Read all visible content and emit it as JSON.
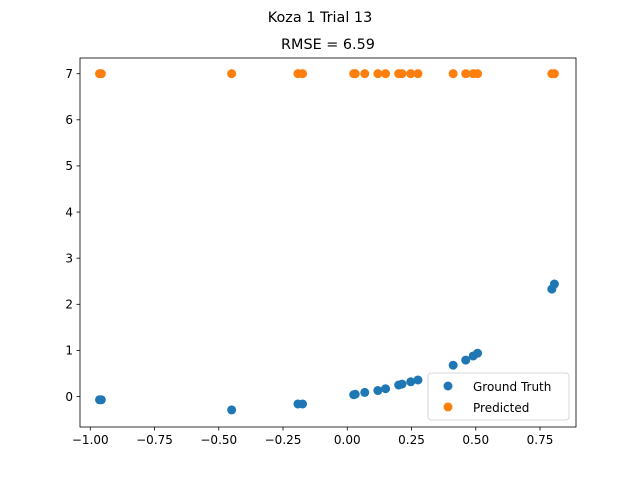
{
  "chart_data": {
    "type": "scatter",
    "suptitle": "Koza 1 Trial 13",
    "title": "RMSE = 6.59",
    "xlabel": "",
    "ylabel": "",
    "xlim": [
      -1.04,
      0.89
    ],
    "ylim": [
      -0.66,
      7.34
    ],
    "x_ticks": [
      -1.0,
      -0.75,
      -0.5,
      -0.25,
      0.0,
      0.25,
      0.5,
      0.75
    ],
    "x_tick_labels": [
      "−1.00",
      "−0.75",
      "−0.50",
      "−0.25",
      "0.00",
      "0.25",
      "0.50",
      "0.75"
    ],
    "y_ticks": [
      0,
      1,
      2,
      3,
      4,
      5,
      6,
      7
    ],
    "y_tick_labels": [
      "0",
      "1",
      "2",
      "3",
      "4",
      "5",
      "6",
      "7"
    ],
    "grid": false,
    "legend_position": "lower-right",
    "series": [
      {
        "name": "Ground Truth",
        "color": "#1f77b4",
        "points": [
          [
            -0.964,
            -0.07
          ],
          [
            -0.957,
            -0.07
          ],
          [
            -0.45,
            -0.29
          ],
          [
            -0.192,
            -0.16
          ],
          [
            -0.174,
            -0.16
          ],
          [
            0.025,
            0.04
          ],
          [
            0.031,
            0.05
          ],
          [
            0.068,
            0.09
          ],
          [
            0.119,
            0.13
          ],
          [
            0.149,
            0.17
          ],
          [
            0.2,
            0.25
          ],
          [
            0.213,
            0.27
          ],
          [
            0.247,
            0.32
          ],
          [
            0.275,
            0.36
          ],
          [
            0.412,
            0.68
          ],
          [
            0.461,
            0.79
          ],
          [
            0.49,
            0.88
          ],
          [
            0.507,
            0.94
          ],
          [
            0.796,
            2.33
          ],
          [
            0.806,
            2.44
          ]
        ]
      },
      {
        "name": "Predicted",
        "color": "#ff7f0e",
        "points": [
          [
            -0.964,
            7.0
          ],
          [
            -0.957,
            7.0
          ],
          [
            -0.45,
            7.0
          ],
          [
            -0.192,
            7.0
          ],
          [
            -0.174,
            7.0
          ],
          [
            0.025,
            7.0
          ],
          [
            0.031,
            7.0
          ],
          [
            0.068,
            7.0
          ],
          [
            0.119,
            7.0
          ],
          [
            0.149,
            7.0
          ],
          [
            0.2,
            7.0
          ],
          [
            0.213,
            7.0
          ],
          [
            0.247,
            7.0
          ],
          [
            0.275,
            7.0
          ],
          [
            0.412,
            7.0
          ],
          [
            0.461,
            7.0
          ],
          [
            0.49,
            7.0
          ],
          [
            0.507,
            7.0
          ],
          [
            0.796,
            7.0
          ],
          [
            0.806,
            7.0
          ]
        ]
      }
    ]
  }
}
